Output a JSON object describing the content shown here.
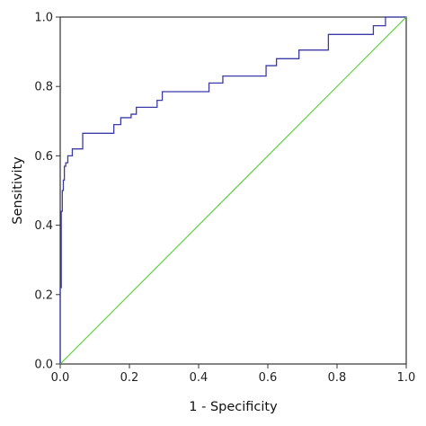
{
  "chart_data": {
    "type": "line",
    "title": "",
    "xlabel": "1 - Specificity",
    "ylabel": "Sensitivity",
    "xlim": [
      0,
      1
    ],
    "ylim": [
      0,
      1
    ],
    "x_ticks": [
      "0.0",
      "0.2",
      "0.4",
      "0.6",
      "0.8",
      "1.0"
    ],
    "y_ticks": [
      "0.0",
      "0.2",
      "0.4",
      "0.6",
      "0.8",
      "1.0"
    ],
    "grid": false,
    "legend": "none",
    "series": [
      {
        "color": "#3b3ba8",
        "style": "step",
        "x": [
          0.0,
          0.0,
          0.003,
          0.003,
          0.006,
          0.006,
          0.009,
          0.009,
          0.012,
          0.012,
          0.016,
          0.016,
          0.022,
          0.022,
          0.035,
          0.035,
          0.065,
          0.065,
          0.155,
          0.155,
          0.175,
          0.175,
          0.205,
          0.205,
          0.22,
          0.22,
          0.28,
          0.28,
          0.295,
          0.295,
          0.43,
          0.43,
          0.47,
          0.47,
          0.595,
          0.595,
          0.625,
          0.625,
          0.69,
          0.69,
          0.775,
          0.775,
          0.905,
          0.905,
          0.94,
          0.94,
          1.0
        ],
        "y": [
          0.0,
          0.22,
          0.22,
          0.44,
          0.44,
          0.5,
          0.5,
          0.53,
          0.53,
          0.57,
          0.57,
          0.58,
          0.58,
          0.6,
          0.6,
          0.62,
          0.62,
          0.665,
          0.665,
          0.69,
          0.69,
          0.71,
          0.71,
          0.72,
          0.72,
          0.74,
          0.74,
          0.76,
          0.76,
          0.785,
          0.785,
          0.81,
          0.81,
          0.83,
          0.83,
          0.86,
          0.86,
          0.88,
          0.88,
          0.905,
          0.905,
          0.95,
          0.95,
          0.975,
          0.975,
          1.0,
          1.0
        ]
      },
      {
        "color": "#44cc22",
        "style": "line",
        "x": [
          0,
          1
        ],
        "y": [
          0,
          1
        ]
      }
    ]
  }
}
